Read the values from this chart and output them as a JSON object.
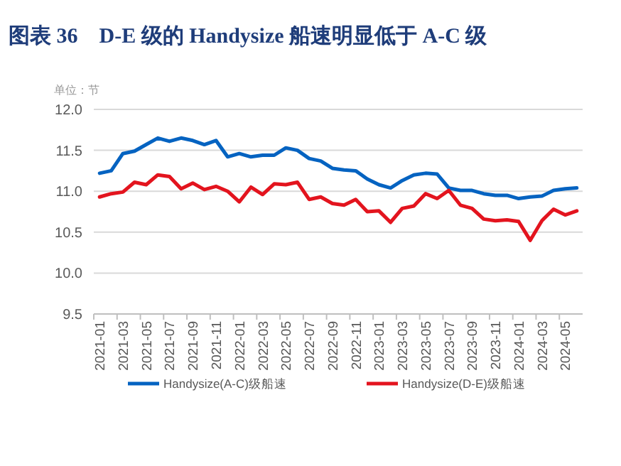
{
  "chart_data": {
    "type": "line",
    "title": "图表 36　D-E 级的 Handysize 船速明显低于 A-C 级",
    "annotations": [
      "单位：节"
    ],
    "categories": [
      "2021-01",
      null,
      "2021-03",
      null,
      "2021-05",
      null,
      "2021-07",
      null,
      "2021-09",
      null,
      "2021-11",
      null,
      "2022-01",
      null,
      "2022-03",
      null,
      "2022-05",
      null,
      "2022-07",
      null,
      "2022-09",
      null,
      "2022-11",
      null,
      "2023-01",
      null,
      "2023-03",
      null,
      "2023-05",
      null,
      "2023-07",
      null,
      "2023-09",
      null,
      "2023-11",
      null,
      "2024-01",
      null,
      "2024-03",
      null,
      "2024-05",
      null
    ],
    "series": [
      {
        "name": "Handysize(A-C)级船速",
        "color": "#0563c1",
        "values": [
          11.22,
          11.25,
          11.46,
          11.49,
          11.57,
          11.65,
          11.61,
          11.65,
          11.62,
          11.57,
          11.62,
          11.42,
          11.46,
          11.42,
          11.44,
          11.44,
          11.53,
          11.5,
          11.4,
          11.37,
          11.28,
          11.26,
          11.25,
          11.15,
          11.08,
          11.04,
          11.13,
          11.2,
          11.22,
          11.21,
          11.04,
          11.01,
          11.01,
          10.97,
          10.95,
          10.95,
          10.91,
          10.93,
          10.94,
          11.01,
          11.03,
          11.04
        ]
      },
      {
        "name": "Handysize(D-E)级船速",
        "color": "#e3141e",
        "values": [
          10.93,
          10.97,
          10.99,
          11.11,
          11.08,
          11.2,
          11.18,
          11.03,
          11.1,
          11.02,
          11.06,
          11.0,
          10.87,
          11.05,
          10.96,
          11.09,
          11.08,
          11.11,
          10.9,
          10.93,
          10.85,
          10.83,
          10.9,
          10.75,
          10.76,
          10.62,
          10.79,
          10.82,
          10.97,
          10.91,
          11.01,
          10.83,
          10.79,
          10.66,
          10.64,
          10.65,
          10.63,
          10.4,
          10.64,
          10.78,
          10.71,
          10.76
        ]
      }
    ],
    "ylim": [
      9.5,
      12.0
    ],
    "yticks": [
      {
        "value": 9.5,
        "label": "9.5"
      },
      {
        "value": 10,
        "label": "10.0"
      },
      {
        "value": 10.5,
        "label": "10.5"
      },
      {
        "value": 11,
        "label": "11.0"
      },
      {
        "value": 11.5,
        "label": "11.5"
      },
      {
        "value": 12,
        "label": "12.0"
      }
    ],
    "grid": "y",
    "legend": "bottom",
    "marker": "none",
    "line_style": "solid"
  }
}
